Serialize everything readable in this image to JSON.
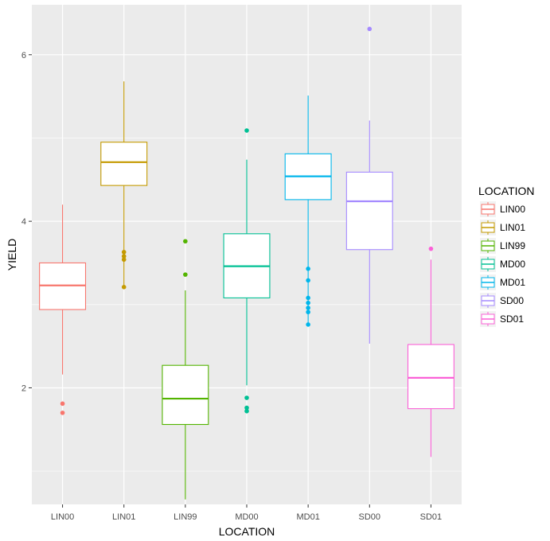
{
  "chart_data": {
    "type": "boxplot",
    "title": "",
    "xlabel": "LOCATION",
    "ylabel": "YIELD",
    "ylim": [
      0.6,
      6.6
    ],
    "yticks": [
      2,
      4,
      6
    ],
    "ytick_labels": [
      "2",
      "4",
      "6"
    ],
    "grid": true,
    "legend": {
      "title": "LOCATION",
      "position": "right"
    },
    "categories": [
      "LIN00",
      "LIN01",
      "LIN99",
      "MD00",
      "MD01",
      "SD00",
      "SD01"
    ],
    "series": [
      {
        "name": "LIN00",
        "color": "#F8766D",
        "whisker_low": 2.16,
        "q1": 2.94,
        "median": 3.23,
        "q3": 3.5,
        "whisker_high": 4.2,
        "outliers": [
          1.81,
          1.7
        ]
      },
      {
        "name": "LIN01",
        "color": "#C49A00",
        "whisker_low": 3.2,
        "q1": 4.43,
        "median": 4.71,
        "q3": 4.95,
        "whisker_high": 5.68,
        "outliers": [
          3.63,
          3.58,
          3.54,
          3.21
        ]
      },
      {
        "name": "LIN99",
        "color": "#53B400",
        "whisker_low": 0.66,
        "q1": 1.56,
        "median": 1.87,
        "q3": 2.27,
        "whisker_high": 3.17,
        "outliers": [
          3.76,
          3.36
        ]
      },
      {
        "name": "MD00",
        "color": "#00C094",
        "whisker_low": 2.03,
        "q1": 3.08,
        "median": 3.46,
        "q3": 3.85,
        "whisker_high": 4.74,
        "outliers": [
          5.09,
          1.88,
          1.76,
          1.72
        ]
      },
      {
        "name": "MD01",
        "color": "#00B6EB",
        "whisker_low": 2.76,
        "q1": 4.26,
        "median": 4.54,
        "q3": 4.81,
        "whisker_high": 5.51,
        "outliers": [
          3.43,
          3.29,
          3.08,
          3.02,
          2.96,
          2.91,
          2.76
        ]
      },
      {
        "name": "SD00",
        "color": "#A58AFF",
        "whisker_low": 2.53,
        "q1": 3.66,
        "median": 4.24,
        "q3": 4.59,
        "whisker_high": 5.21,
        "outliers": [
          6.31
        ]
      },
      {
        "name": "SD01",
        "color": "#FB61D7",
        "whisker_low": 1.17,
        "q1": 1.75,
        "median": 2.12,
        "q3": 2.52,
        "whisker_high": 3.54,
        "outliers": [
          3.67
        ]
      }
    ]
  }
}
